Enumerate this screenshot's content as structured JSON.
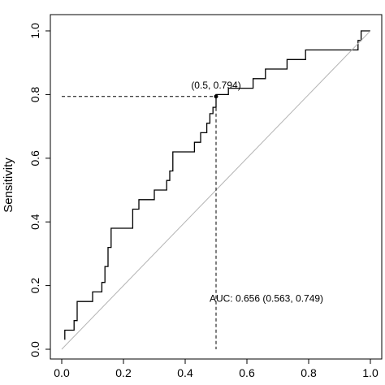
{
  "chart_data": {
    "type": "line",
    "title": "",
    "xlabel": "",
    "ylabel": "Sensitivity",
    "xlim": [
      0,
      1
    ],
    "ylim": [
      0,
      1
    ],
    "x_ticks": [
      "0.0",
      "0.2",
      "0.4",
      "0.6",
      "0.8",
      "1.0"
    ],
    "y_ticks": [
      "0.0",
      "0.2",
      "0.4",
      "0.6",
      "0.8",
      "1.0"
    ],
    "grid": false,
    "legend": "none",
    "series": [
      {
        "style": "step",
        "color": "#000000",
        "points": [
          [
            0.01,
            0.03
          ],
          [
            0.01,
            0.06
          ],
          [
            0.04,
            0.06
          ],
          [
            0.04,
            0.09
          ],
          [
            0.05,
            0.09
          ],
          [
            0.05,
            0.15
          ],
          [
            0.1,
            0.15
          ],
          [
            0.1,
            0.18
          ],
          [
            0.13,
            0.18
          ],
          [
            0.13,
            0.21
          ],
          [
            0.14,
            0.21
          ],
          [
            0.14,
            0.26
          ],
          [
            0.15,
            0.26
          ],
          [
            0.15,
            0.32
          ],
          [
            0.16,
            0.32
          ],
          [
            0.16,
            0.38
          ],
          [
            0.23,
            0.38
          ],
          [
            0.23,
            0.44
          ],
          [
            0.25,
            0.44
          ],
          [
            0.25,
            0.47
          ],
          [
            0.3,
            0.47
          ],
          [
            0.3,
            0.5
          ],
          [
            0.34,
            0.5
          ],
          [
            0.34,
            0.53
          ],
          [
            0.35,
            0.53
          ],
          [
            0.35,
            0.56
          ],
          [
            0.36,
            0.56
          ],
          [
            0.36,
            0.62
          ],
          [
            0.43,
            0.62
          ],
          [
            0.43,
            0.65
          ],
          [
            0.45,
            0.65
          ],
          [
            0.45,
            0.68
          ],
          [
            0.47,
            0.68
          ],
          [
            0.47,
            0.71
          ],
          [
            0.48,
            0.71
          ],
          [
            0.48,
            0.74
          ],
          [
            0.49,
            0.74
          ],
          [
            0.49,
            0.76
          ],
          [
            0.5,
            0.76
          ],
          [
            0.5,
            0.794
          ],
          [
            0.5,
            0.8
          ],
          [
            0.54,
            0.8
          ],
          [
            0.54,
            0.82
          ],
          [
            0.62,
            0.82
          ],
          [
            0.62,
            0.85
          ],
          [
            0.66,
            0.85
          ],
          [
            0.66,
            0.88
          ],
          [
            0.73,
            0.88
          ],
          [
            0.73,
            0.91
          ],
          [
            0.79,
            0.91
          ],
          [
            0.79,
            0.94
          ],
          [
            0.96,
            0.94
          ],
          [
            0.96,
            0.97
          ],
          [
            0.97,
            0.97
          ],
          [
            0.97,
            1.0
          ],
          [
            1.0,
            1.0
          ]
        ]
      },
      {
        "style": "diagonal",
        "color": "#b5b5b5",
        "points": [
          [
            0,
            0
          ],
          [
            1,
            1
          ]
        ]
      }
    ],
    "highlight_point": {
      "x": 0.5,
      "y": 0.794,
      "label": "(0.5, 0.794)"
    },
    "annotations": [
      {
        "text": "AUC: 0.656 (0.563, 0.749)",
        "x": 0.5,
        "y": 0.16
      }
    ]
  }
}
